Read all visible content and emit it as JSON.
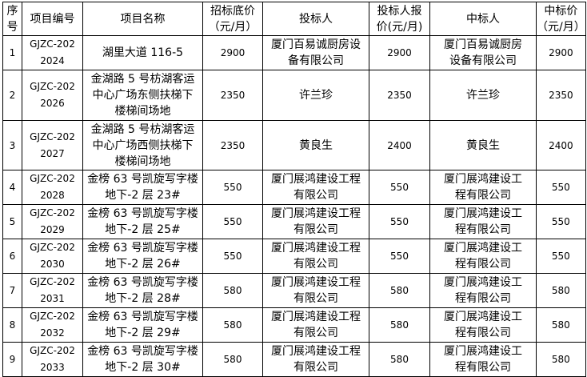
{
  "columns": [
    [
      "序",
      "号"
    ],
    [
      "项目编号"
    ],
    [
      "项目名称"
    ],
    [
      "招标底价",
      "（元/月）"
    ],
    [
      "投标人"
    ],
    [
      "投标人报",
      "价(元/月)"
    ],
    [
      "中标人"
    ],
    [
      "中标价",
      "（元/月）"
    ]
  ],
  "rows": [
    {
      "no": "1",
      "code": [
        "GJZC-202",
        "2024"
      ],
      "name": [
        "湖里大道 116-5"
      ],
      "base": "2900",
      "bidder": [
        "厦门百易诚厨房设",
        "备有限公司"
      ],
      "bid": "2900",
      "winner": [
        "厦门百易诚厨房",
        "设备有限公司"
      ],
      "price": "2900"
    },
    {
      "no": "2",
      "code": [
        "GJZC-202",
        "2026"
      ],
      "name": [
        "金湖路 5 号枋湖客运",
        "中心广场东侧扶梯下",
        "楼梯间场地"
      ],
      "base": "2350",
      "bidder": [
        "许兰珍"
      ],
      "bid": "2350",
      "winner": [
        "许兰珍"
      ],
      "price": "2350"
    },
    {
      "no": "3",
      "code": [
        "GJZC-202",
        "2027"
      ],
      "name": [
        "金湖路 5 号枋湖客运",
        "中心广场西侧扶梯下",
        "楼梯间场地"
      ],
      "base": "2350",
      "bidder": [
        "黄良生"
      ],
      "bid": "2400",
      "winner": [
        "黄良生"
      ],
      "price": "2400"
    },
    {
      "no": "4",
      "code": [
        "GJZC-202",
        "2028"
      ],
      "name": [
        "金榜 63 号凯旋写字楼",
        "地下-2 层 23#"
      ],
      "base": "550",
      "bidder": [
        "厦门展鸿建设工程",
        "有限公司"
      ],
      "bid": "550",
      "winner": [
        "厦门展鸿建设工",
        "程有限公司"
      ],
      "price": "550"
    },
    {
      "no": "5",
      "code": [
        "GJZC-202",
        "2029"
      ],
      "name": [
        "金榜 63 号凯旋写字楼",
        "地下-2 层 25#"
      ],
      "base": "550",
      "bidder": [
        "厦门展鸿建设工程",
        "有限公司"
      ],
      "bid": "550",
      "winner": [
        "厦门展鸿建设工",
        "程有限公司"
      ],
      "price": "550"
    },
    {
      "no": "6",
      "code": [
        "GJZC-202",
        "2030"
      ],
      "name": [
        "金榜 63 号凯旋写字楼",
        "地下-2 层 26#"
      ],
      "base": "550",
      "bidder": [
        "厦门展鸿建设工程",
        "有限公司"
      ],
      "bid": "550",
      "winner": [
        "厦门展鸿建设工",
        "程有限公司"
      ],
      "price": "550"
    },
    {
      "no": "7",
      "code": [
        "GJZC-202",
        "2031"
      ],
      "name": [
        "金榜 63 号凯旋写字楼",
        "地下-2 层 28#"
      ],
      "base": "580",
      "bidder": [
        "厦门展鸿建设工程",
        "有限公司"
      ],
      "bid": "580",
      "winner": [
        "厦门展鸿建设工",
        "程有限公司"
      ],
      "price": "580"
    },
    {
      "no": "8",
      "code": [
        "GJZC-202",
        "2032"
      ],
      "name": [
        "金榜 63 号凯旋写字楼",
        "地下-2 层 29#"
      ],
      "base": "580",
      "bidder": [
        "厦门展鸿建设工程",
        "有限公司"
      ],
      "bid": "580",
      "winner": [
        "厦门展鸿建设工",
        "程有限公司"
      ],
      "price": "580"
    },
    {
      "no": "9",
      "code": [
        "GJZC-202",
        "2033"
      ],
      "name": [
        "金榜 63 号凯旋写字楼",
        "地下-2 层 30#"
      ],
      "base": "580",
      "bidder": [
        "厦门展鸿建设工程",
        "有限公司"
      ],
      "bid": "580",
      "winner": [
        "厦门展鸿建设工",
        "程有限公司"
      ],
      "price": "580"
    }
  ]
}
